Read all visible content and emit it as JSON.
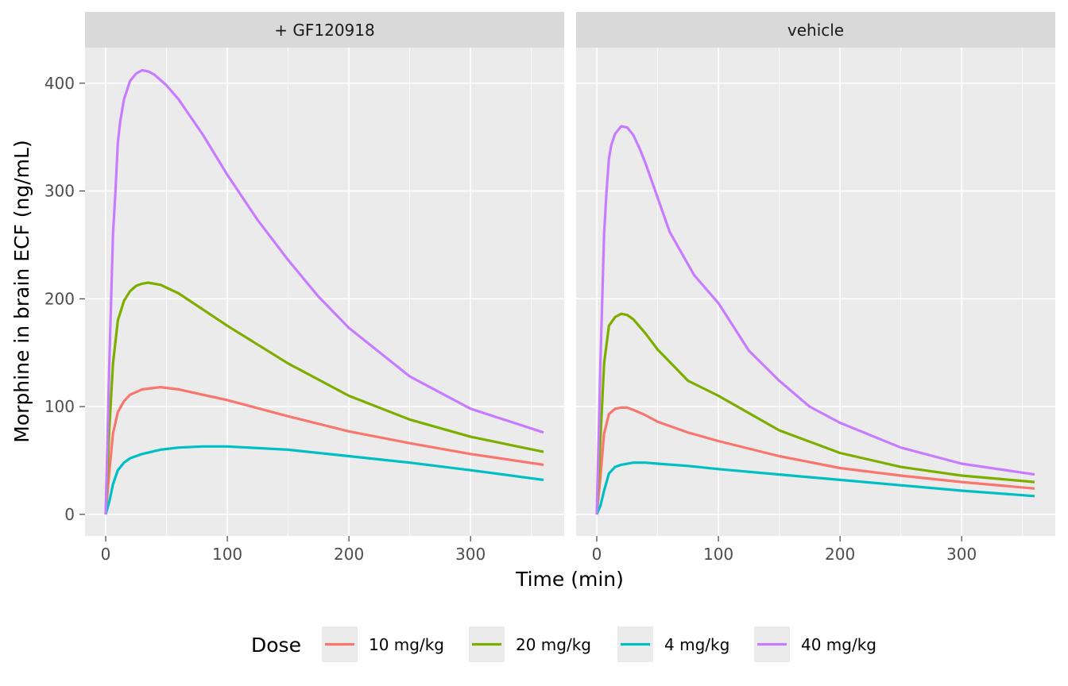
{
  "chart_data": {
    "type": "line",
    "xlabel": "Time (min)",
    "ylabel": "Morphine in brain ECF (ng/mL)",
    "xlim": [
      -17,
      377
    ],
    "ylim": [
      -20,
      433
    ],
    "x_ticks": [
      0,
      100,
      200,
      300
    ],
    "y_ticks": [
      0,
      100,
      200,
      300,
      400
    ],
    "x_tick_labels": [
      "0",
      "100",
      "200",
      "300"
    ],
    "y_tick_labels": [
      "0",
      "100",
      "200",
      "300",
      "400"
    ],
    "grid": true,
    "legend": {
      "title": "Dose",
      "position": "bottom",
      "entries": [
        "10 mg/kg",
        "20 mg/kg",
        "4 mg/kg",
        "40 mg/kg"
      ]
    },
    "colors": {
      "10 mg/kg": "#F8766D",
      "20 mg/kg": "#7CAE00",
      "4 mg/kg": "#00BFC4",
      "40 mg/kg": "#C77CFF"
    },
    "panels": [
      {
        "title": "+ GF120918",
        "series": [
          {
            "name": "10 mg/kg",
            "x": [
              0,
              3,
              6,
              10,
              15,
              20,
              30,
              45,
              60,
              80,
              100,
              150,
              200,
              250,
              300,
              360
            ],
            "y": [
              0,
              40,
              75,
              95,
              105,
              111,
              116,
              118,
              116,
              111,
              106,
              91,
              77,
              66,
              56,
              46
            ]
          },
          {
            "name": "20 mg/kg",
            "x": [
              0,
              3,
              6,
              10,
              15,
              20,
              25,
              30,
              35,
              45,
              60,
              80,
              100,
              150,
              200,
              250,
              300,
              360
            ],
            "y": [
              0,
              80,
              140,
              180,
              198,
              207,
              212,
              214,
              215,
              213,
              205,
              190,
              175,
              140,
              110,
              88,
              72,
              58
            ]
          },
          {
            "name": "4 mg/kg",
            "x": [
              0,
              3,
              6,
              10,
              15,
              20,
              30,
              45,
              60,
              80,
              100,
              150,
              200,
              250,
              300,
              360
            ],
            "y": [
              0,
              12,
              28,
              41,
              48,
              52,
              56,
              60,
              62,
              63,
              63,
              60,
              54,
              48,
              41,
              32
            ]
          },
          {
            "name": "40 mg/kg",
            "x": [
              0,
              3,
              6,
              8,
              10,
              12,
              15,
              20,
              25,
              30,
              35,
              40,
              50,
              60,
              80,
              100,
              125,
              150,
              175,
              200,
              250,
              300,
              360
            ],
            "y": [
              0,
              140,
              260,
              300,
              345,
              365,
              385,
              402,
              409,
              412,
              411,
              408,
              398,
              385,
              352,
              315,
              273,
              236,
              202,
              173,
              128,
              98,
              76
            ]
          }
        ]
      },
      {
        "title": "vehicle",
        "series": [
          {
            "name": "10 mg/kg",
            "x": [
              0,
              3,
              6,
              10,
              15,
              20,
              25,
              30,
              40,
              50,
              75,
              100,
              150,
              200,
              250,
              300,
              360
            ],
            "y": [
              0,
              35,
              75,
              93,
              98,
              99,
              99,
              97,
              92,
              86,
              76,
              68,
              54,
              43,
              36,
              30,
              24
            ]
          },
          {
            "name": "20 mg/kg",
            "x": [
              0,
              3,
              6,
              10,
              15,
              20,
              25,
              30,
              40,
              50,
              75,
              100,
              150,
              200,
              250,
              300,
              360
            ],
            "y": [
              0,
              70,
              140,
              175,
              183,
              186,
              185,
              181,
              168,
              153,
              124,
              110,
              78,
              57,
              44,
              36,
              30
            ]
          },
          {
            "name": "4 mg/kg",
            "x": [
              0,
              3,
              6,
              10,
              15,
              20,
              30,
              40,
              50,
              75,
              100,
              150,
              200,
              250,
              300,
              360
            ],
            "y": [
              0,
              8,
              22,
              38,
              44,
              46,
              48,
              48,
              47,
              45,
              42,
              37,
              32,
              27,
              22,
              17
            ]
          },
          {
            "name": "40 mg/kg",
            "x": [
              0,
              3,
              6,
              8,
              10,
              12,
              15,
              20,
              25,
              30,
              35,
              40,
              50,
              60,
              80,
              100,
              125,
              150,
              175,
              200,
              250,
              300,
              360
            ],
            "y": [
              0,
              140,
              260,
              300,
              330,
              343,
              353,
              360,
              359,
              352,
              340,
              326,
              294,
              262,
              222,
              196,
              152,
              124,
              100,
              85,
              62,
              47,
              37
            ]
          }
        ]
      }
    ]
  }
}
